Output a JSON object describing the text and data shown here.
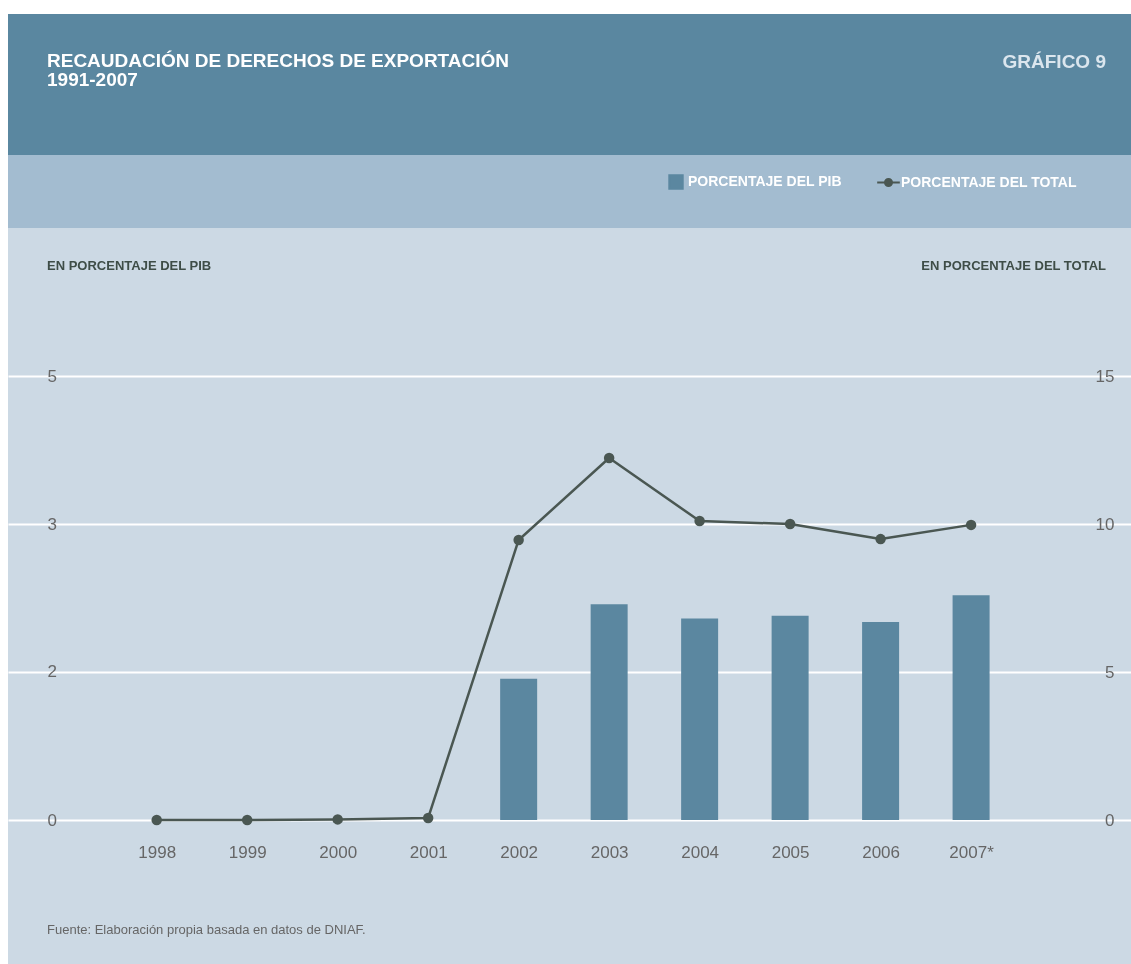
{
  "chart_data": {
    "type": "bar",
    "title": "RECAUDACIÓN DE DERECHOS DE EXPORTACIÓN",
    "subtitle": "1991-2007",
    "annotations": [
      "GRÁFICO 9",
      "EN PORCENTAJE DEL PIB",
      "EN PORCENTAJE DEL TOTAL",
      "Fuente: Elaboración propia basada en datos de DNIAF."
    ],
    "categories": [
      "1998",
      "1999",
      "2000",
      "2001",
      "2002",
      "2003",
      "2004",
      "2005",
      "2006",
      "2007*"
    ],
    "series": [
      {
        "name": "PORCENTAJE DEL PIB",
        "color": "#5b87a0",
        "values": [
          null,
          null,
          null,
          null,
          1.59,
          2.43,
          2.27,
          2.3,
          2.23,
          2.53
        ]
      },
      {
        "name": "PORCENTAJE DEL TOTAL",
        "type": "line",
        "axis": "y2",
        "color": "#4a5752",
        "marker": "circle",
        "values": [
          0,
          0,
          0.02,
          0.07,
          9.46,
          12.23,
          10.1,
          10.0,
          9.49,
          9.97
        ]
      }
    ],
    "ylim": [
      0,
      5
    ],
    "yticks": [
      0,
      {
        "value": 1.667,
        "label": "2"
      },
      {
        "value": 3.333,
        "label": "3"
      },
      5
    ],
    "y2lim": [
      0,
      15
    ],
    "y2ticks": [
      0,
      5,
      10,
      15
    ],
    "grid": "y",
    "legend": "top right"
  }
}
